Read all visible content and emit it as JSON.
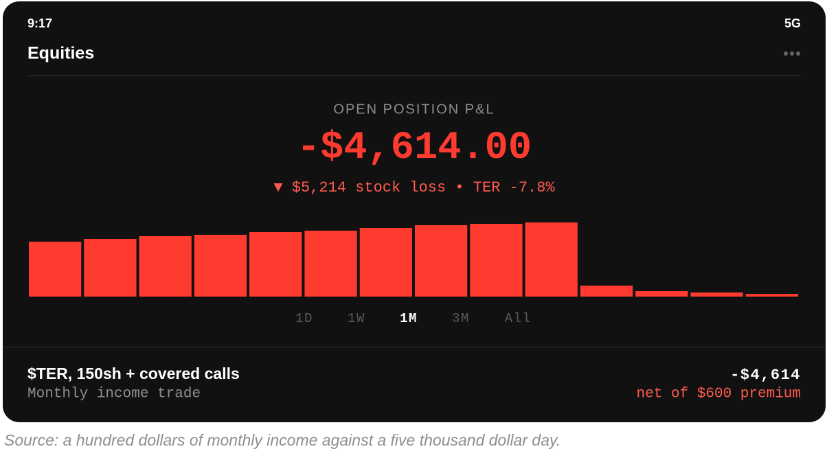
{
  "status_bar": {
    "time": "9:17",
    "network": "5G"
  },
  "header": {
    "title": "Equities"
  },
  "summary": {
    "label": "OPEN POSITION P&L",
    "value": "-$4,614.00",
    "detail": "▼ $5,214 stock loss • TER -7.8%"
  },
  "chart_data": {
    "type": "bar",
    "values": [
      80,
      84,
      88,
      90,
      94,
      96,
      100,
      104,
      106,
      108,
      16,
      8,
      6,
      4
    ],
    "color": "#ff3b30"
  },
  "range_selector": {
    "options": [
      "1D",
      "1W",
      "1M",
      "3M",
      "All"
    ],
    "selected": 2
  },
  "position": {
    "title": "$TER, 150sh + covered calls",
    "subtitle": "Monthly income trade",
    "value": "-$4,614",
    "note": "net of $600 premium"
  },
  "caption": "Source: a hundred dollars of monthly income against a five thousand dollar day."
}
